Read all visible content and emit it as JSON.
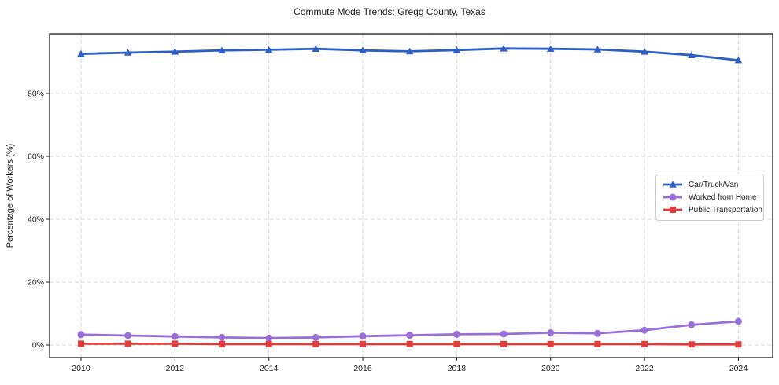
{
  "title": "Commute Mode Trends: Gregg County, Texas",
  "chart_data": {
    "type": "line",
    "title": "Commute Mode Trends: Gregg County, Texas",
    "xlabel": "",
    "ylabel": "Percentage of Workers (%)",
    "x": [
      2010,
      2011,
      2012,
      2013,
      2014,
      2015,
      2016,
      2017,
      2018,
      2019,
      2020,
      2021,
      2022,
      2023,
      2024
    ],
    "series": [
      {
        "name": "Car/Truck/Van",
        "color": "#2e5fc4",
        "marker": "triangle-up",
        "values": [
          92.6,
          93.0,
          93.3,
          93.7,
          93.9,
          94.2,
          93.7,
          93.4,
          93.8,
          94.3,
          94.2,
          94.0,
          93.3,
          92.2,
          90.6
        ]
      },
      {
        "name": "Worked from Home",
        "color": "#9a6fd8",
        "marker": "circle",
        "values": [
          3.3,
          3.0,
          2.7,
          2.4,
          2.2,
          2.4,
          2.8,
          3.1,
          3.4,
          3.5,
          3.9,
          3.7,
          4.7,
          6.4,
          7.5
        ]
      },
      {
        "name": "Public Transportation",
        "color": "#e03c3c",
        "marker": "square",
        "values": [
          0.4,
          0.4,
          0.4,
          0.3,
          0.3,
          0.3,
          0.3,
          0.3,
          0.3,
          0.3,
          0.3,
          0.3,
          0.3,
          0.2,
          0.2
        ]
      }
    ],
    "x_ticks": [
      2010,
      2012,
      2014,
      2016,
      2018,
      2020,
      2022,
      2024
    ],
    "x_tick_labels": [
      "2010",
      "2012",
      "2014",
      "2016",
      "2018",
      "2020",
      "2022",
      "2024"
    ],
    "y_ticks": [
      0,
      20,
      40,
      60,
      80
    ],
    "y_tick_labels": [
      "0%",
      "20%",
      "40%",
      "60%",
      "80%"
    ],
    "xlim": [
      2009.33,
      2024.73
    ],
    "ylim": [
      -4,
      99
    ],
    "grid": true,
    "legend_position": "center right"
  },
  "colors": {
    "grid": "#d9d9d9",
    "frame": "#1a1a1a",
    "legend_border": "#cccccc",
    "text": "#1a1a1a"
  }
}
